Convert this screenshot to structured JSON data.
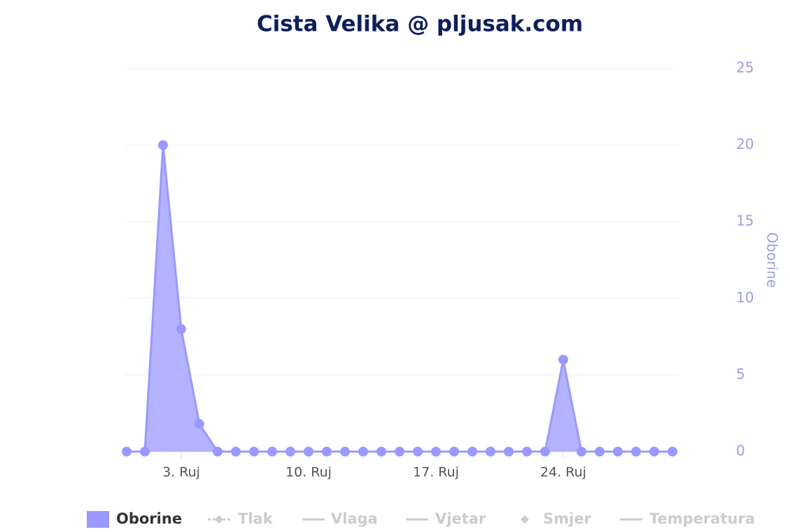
{
  "chart_data": {
    "type": "area",
    "title": "Cista Velika @ pljusak.com",
    "y_axis_label": "Oborine",
    "categories": [
      null,
      null,
      null,
      "3. Ruj",
      null,
      null,
      null,
      null,
      null,
      null,
      "10. Ruj",
      null,
      null,
      null,
      null,
      null,
      null,
      "17. Ruj",
      null,
      null,
      null,
      null,
      null,
      null,
      "24. Ruj",
      null,
      null,
      null,
      null,
      null,
      null
    ],
    "series": [
      {
        "name": "Oborine",
        "color": "#9999ff",
        "values": [
          0,
          0,
          20,
          8,
          1.8,
          0,
          0,
          0,
          0,
          0,
          0,
          0,
          0,
          0,
          0,
          0,
          0,
          0,
          0,
          0,
          0,
          0,
          0,
          0,
          6,
          0,
          0,
          0,
          0,
          0,
          0
        ]
      }
    ],
    "hidden_series": [
      "Tlak",
      "Vlaga",
      "Vjetar",
      "Smjer",
      "Temperatura"
    ],
    "ylim": [
      0,
      25
    ],
    "yticks": [
      0,
      5,
      10,
      15,
      20,
      25
    ],
    "grid": true
  }
}
